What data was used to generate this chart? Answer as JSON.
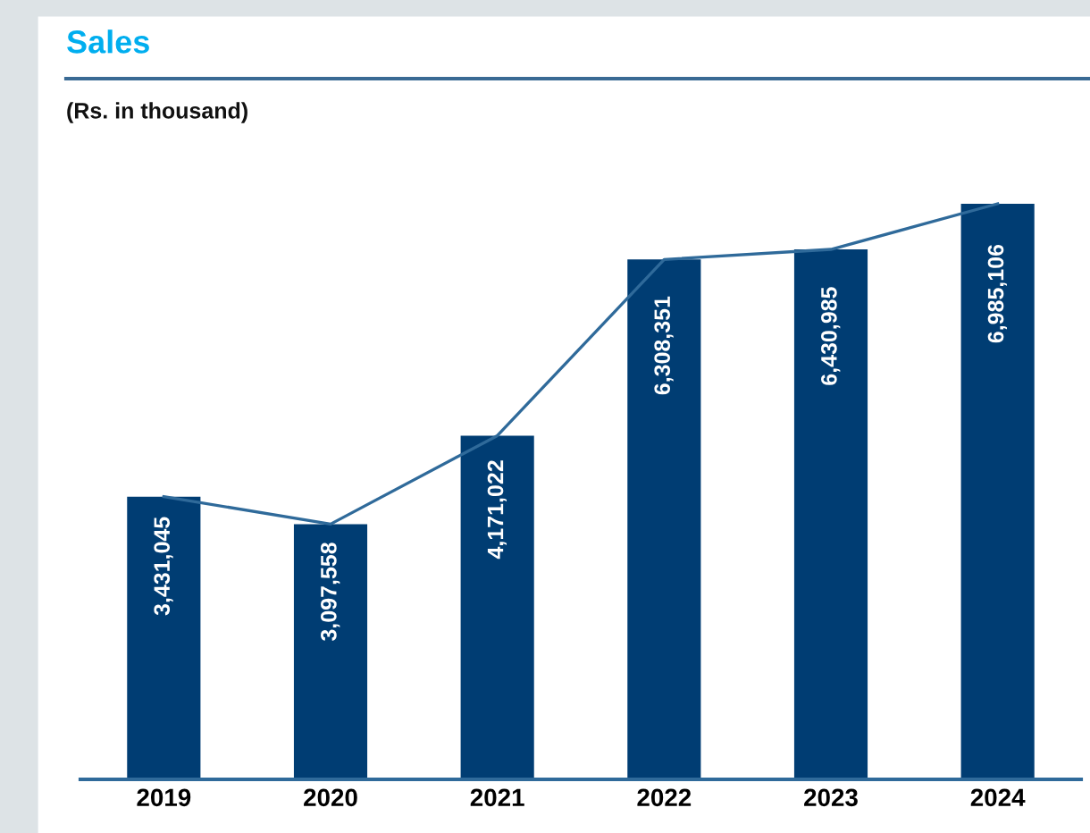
{
  "chart_data": {
    "type": "bar",
    "title": "Sales",
    "subtitle": "(Rs. in thousand)",
    "categories": [
      "2019",
      "2020",
      "2021",
      "2022",
      "2023",
      "2024"
    ],
    "series": [
      {
        "color": "#003d73",
        "values": [
          3431045,
          3097558,
          4171022,
          6308351,
          6430985,
          6985106
        ],
        "value_labels": [
          "3,431,045",
          "3,097,558",
          "4,171,022",
          "6,308,351",
          "6,430,985",
          "6,985,106"
        ]
      },
      {
        "type": "line",
        "color": "#2f6a9a",
        "values": [
          3431045,
          3097558,
          4171022,
          6308351,
          6430985,
          6985106
        ]
      }
    ],
    "tick_labels": "x",
    "grid": false,
    "legend": false
  }
}
